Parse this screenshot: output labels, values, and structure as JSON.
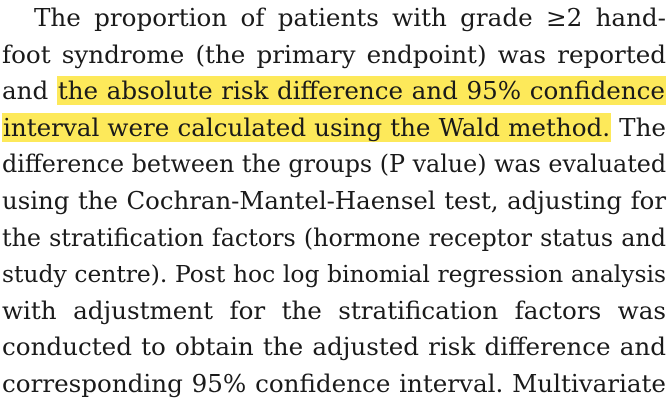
{
  "paragraph": {
    "lines": [
      "The proportion of patients with grade ≥2 hand-",
      "foot syndrome (the primary endpoint) was reported",
      {
        "pre": "and ",
        "highlight": "the absolute risk difference and 95% confidence"
      },
      {
        "highlight": "interval were calculated using the Wald method.",
        "post": " The"
      },
      "difference between the groups (P value) was evaluated",
      "using the Cochran-Mantel-Haensel test, adjusting for",
      "the stratification factors (hormone receptor status and",
      "study centre). Post hoc log binomial regression analysis",
      "with adjustment for the stratification factors was",
      "conducted to obtain the adjusted risk difference and",
      "corresponding 95% confidence interval. Multivariate"
    ]
  },
  "highlight_color": "#fde95a",
  "text_color": "#1a1a1a"
}
